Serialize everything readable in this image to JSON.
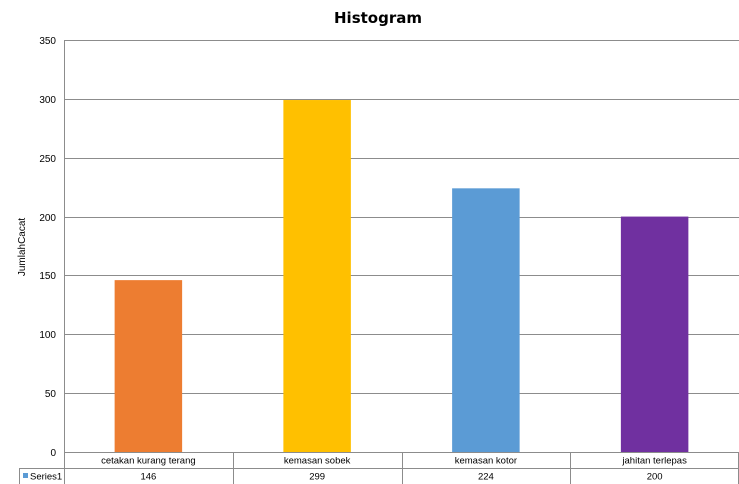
{
  "chart_data": {
    "type": "bar",
    "title": "Histogram",
    "xlabel": "",
    "ylabel": "JumlahCacat",
    "categories": [
      "cetakan kurang terang",
      "kemasan sobek",
      "kemasan kotor",
      "jahitan terlepas"
    ],
    "series": [
      {
        "name": "Series1",
        "values": [
          146,
          299,
          224,
          200
        ],
        "colors": [
          "#ED7D31",
          "#FFC000",
          "#5B9BD5",
          "#7030A0"
        ]
      }
    ],
    "ylim": [
      0,
      350
    ],
    "yticks": [
      0,
      50,
      100,
      150,
      200,
      250,
      300,
      350
    ],
    "grid": true,
    "legend": "data-table",
    "legend_key_color": "#5B9BD5"
  }
}
